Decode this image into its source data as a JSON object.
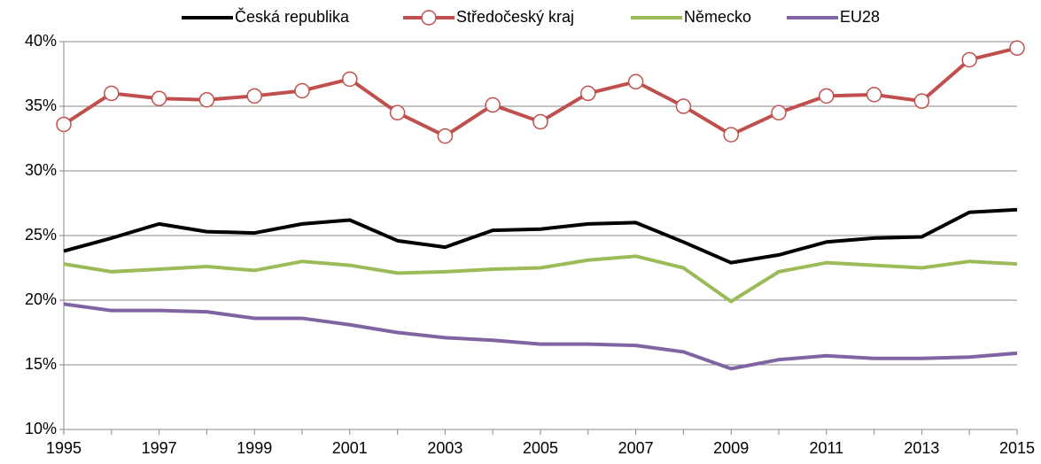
{
  "chart_data": {
    "type": "line",
    "categories": [
      "1995",
      null,
      "1997",
      null,
      "1999",
      null,
      "2001",
      null,
      "2003",
      null,
      "2005",
      null,
      "2007",
      null,
      "2009",
      null,
      "2011",
      null,
      "2013",
      null,
      "2015"
    ],
    "series": [
      {
        "name": "Česká republika",
        "color": "#000000",
        "values": [
          23.8,
          24.8,
          25.9,
          25.3,
          25.2,
          25.9,
          26.2,
          24.6,
          24.1,
          25.4,
          25.5,
          25.9,
          26.0,
          24.5,
          22.9,
          23.5,
          24.5,
          24.8,
          24.9,
          26.8,
          27.0
        ]
      },
      {
        "name": "Středočeský kraj",
        "color": "#c0504d",
        "marker": "circle",
        "values": [
          33.6,
          36.0,
          35.6,
          35.5,
          35.8,
          36.2,
          37.1,
          34.5,
          32.7,
          35.1,
          33.8,
          36.0,
          36.9,
          35.0,
          32.8,
          34.5,
          35.8,
          35.9,
          35.4,
          38.6,
          39.5
        ]
      },
      {
        "name": "Německo",
        "color": "#9bbb59",
        "values": [
          22.8,
          22.2,
          22.4,
          22.6,
          22.3,
          23.0,
          22.7,
          22.1,
          22.2,
          22.4,
          22.5,
          23.1,
          23.4,
          22.5,
          19.9,
          22.2,
          22.9,
          22.7,
          22.5,
          23.0,
          22.8
        ]
      },
      {
        "name": "EU28",
        "color": "#8064a2",
        "values": [
          19.7,
          19.2,
          19.2,
          19.1,
          18.6,
          18.6,
          18.1,
          17.5,
          17.1,
          16.9,
          16.6,
          16.6,
          16.5,
          16.0,
          14.7,
          15.4,
          15.7,
          15.5,
          15.5,
          15.6,
          15.9
        ]
      }
    ],
    "ylim": [
      10,
      40
    ],
    "yticks": [
      {
        "value": 10,
        "label": "10%"
      },
      {
        "value": 15,
        "label": "15%"
      },
      {
        "value": 20,
        "label": "20%"
      },
      {
        "value": 25,
        "label": "25%"
      },
      {
        "value": 30,
        "label": "30%"
      },
      {
        "value": 35,
        "label": "35%"
      },
      {
        "value": 40,
        "label": "40%"
      }
    ],
    "grid": true,
    "legend": "top"
  }
}
